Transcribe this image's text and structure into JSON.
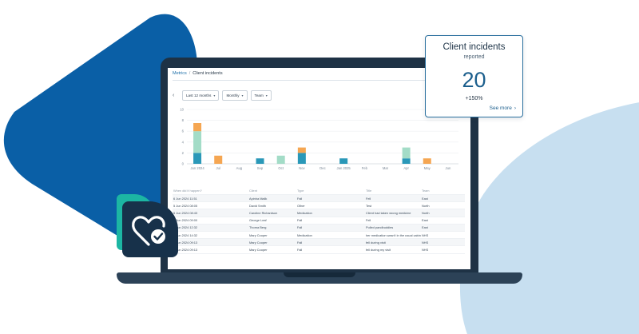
{
  "breadcrumb": {
    "root": "Metrics",
    "separator": "/",
    "current": "Client incidents"
  },
  "filters": {
    "back_icon": "chevron-left-icon",
    "period": "Last 12 months",
    "interval": "Monthly",
    "group": "Team"
  },
  "chart_data": {
    "type": "bar",
    "stacked": true,
    "categories": [
      "Jun 2024",
      "Jul",
      "Aug",
      "Sep",
      "Oct",
      "Nov",
      "Dec",
      "Jan 2025",
      "Feb",
      "Mar",
      "Apr",
      "May",
      "Jun"
    ],
    "ylim": [
      0,
      10
    ],
    "yticks": [
      0,
      2,
      4,
      6,
      8,
      10
    ],
    "series": [
      {
        "color": "#2a98b8",
        "values": [
          2,
          0,
          0,
          1,
          0,
          2,
          0,
          1,
          0,
          0,
          1,
          0,
          0
        ]
      },
      {
        "color": "#a3dcc7",
        "values": [
          4,
          0,
          0,
          0,
          1.5,
          0,
          0,
          0,
          0,
          0,
          2,
          0,
          0
        ]
      },
      {
        "color": "#f5a652",
        "values": [
          1.5,
          1.5,
          0,
          0,
          0,
          1,
          0,
          0,
          0,
          0,
          0,
          1,
          0
        ]
      }
    ],
    "grid": true,
    "legend": "none"
  },
  "table": {
    "headers": [
      "When did it happen?",
      "Client",
      "Type",
      "Title",
      "Team"
    ],
    "rows": [
      [
        "6 Jun 2024 11:51",
        "Apinha Malik",
        "Fall",
        "Fell",
        "East"
      ],
      [
        "5 Jun 2024 08:05",
        "David Smith",
        "Other",
        "Test",
        "North"
      ],
      [
        "5 Jun 2024 08:43",
        "Caroline Richardson",
        "Medication",
        "Client had taken wrong medicine",
        "North"
      ],
      [
        "5 Jun 2024 09:00",
        "George Leaf",
        "Fall",
        "Fell",
        "East"
      ],
      [
        "5 Jun 2024 12:32",
        "Thoma Berg",
        "Fall",
        "Pulled pandbuddies",
        "East"
      ],
      [
        "4 Jun 2024 14:32",
        "Mary Cooper",
        "Medication",
        "her medication wasn't in the usual cabinet",
        "NHS"
      ],
      [
        "4 Jun 2024 09:13",
        "Mary Cooper",
        "Fall",
        "fell during visit",
        "NHS"
      ],
      [
        "4 Jun 2024 09:13",
        "Mary Cooper",
        "Fall",
        "fell during my visit",
        "NHS"
      ]
    ]
  },
  "badge": {
    "icon": "heart-check-icon"
  },
  "stat_card": {
    "title": "Client incidents",
    "subtitle": "reported",
    "value": "20",
    "change": "+150%",
    "link": "See more",
    "link_icon": "chevron-right-icon"
  },
  "colors": {
    "brand_blue": "#0a5fa6",
    "light_blue": "#c7dff0",
    "laptop": "#1e3245",
    "teal": "#1cb6a3",
    "accent": "#1c5f8d"
  }
}
